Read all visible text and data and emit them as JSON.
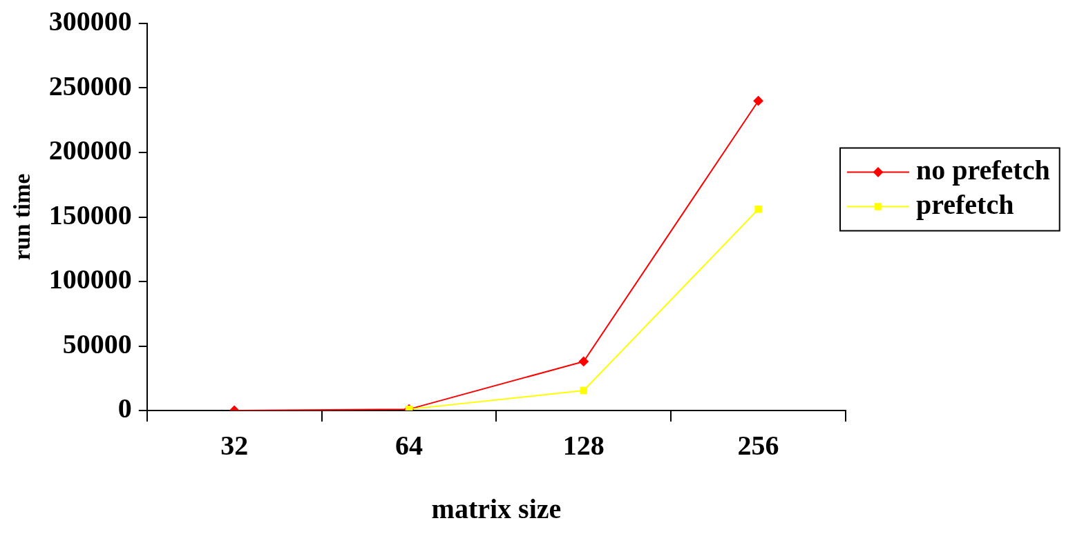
{
  "chart_data": {
    "type": "line",
    "xlabel": "matrix size",
    "ylabel": "run time",
    "categories": [
      "32",
      "64",
      "128",
      "256"
    ],
    "series": [
      {
        "name": "no prefetch",
        "color": "#ff0000",
        "marker": "diamond",
        "values": [
          0,
          1000,
          38000,
          240000
        ]
      },
      {
        "name": "prefetch",
        "color": "#ffff00",
        "marker": "square",
        "values": [
          null,
          1000,
          15500,
          156000
        ]
      }
    ],
    "ylim": [
      0,
      300000
    ],
    "yticks": [
      0,
      50000,
      100000,
      150000,
      200000,
      250000,
      300000
    ],
    "grid": false,
    "legend": "right",
    "line_style": "solid"
  }
}
